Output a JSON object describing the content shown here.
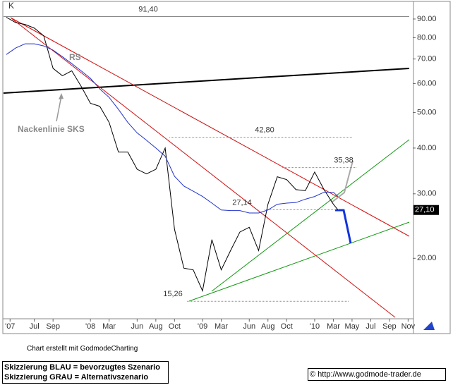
{
  "chart_data": {
    "type": "line",
    "log_scale": true,
    "grid": true,
    "x": [
      3,
      4,
      5,
      6,
      7,
      8,
      9,
      10,
      11,
      12,
      13,
      14,
      15,
      16,
      17,
      18,
      19,
      20,
      21,
      22,
      23,
      24,
      25,
      26,
      27,
      28,
      29,
      30,
      31,
      32,
      33,
      34,
      35,
      36,
      37,
      38,
      38.5
    ],
    "series": [
      {
        "color": "#000000",
        "values": [
          91,
          88,
          87,
          85,
          81,
          66,
          63,
          65,
          59,
          53,
          52,
          47,
          39,
          39,
          35,
          34,
          35,
          40,
          24,
          18.8,
          18.6,
          16.3,
          22.5,
          18.6,
          21,
          23.6,
          24.3,
          21,
          28.1,
          33.4,
          32.8,
          30.8,
          30.6,
          34.4,
          30.8,
          28.1,
          27.1
        ]
      },
      {
        "color": "#2233cc",
        "values": [
          72,
          75,
          77,
          77,
          76,
          74,
          71,
          68,
          65,
          62,
          58,
          55,
          51,
          47,
          44,
          42,
          40,
          38,
          33.5,
          31.5,
          30.5,
          29.5,
          28.3,
          27.1,
          27,
          27,
          26.6,
          26.6,
          27.1,
          28.1,
          28.3,
          28.4,
          29,
          29.5,
          30.3,
          30.3,
          29.5
        ]
      }
    ],
    "xlim": [
      2.7,
      46.5
    ],
    "xticks": [
      {
        "value": 3.4,
        "label": "'07"
      },
      {
        "value": 6,
        "label": "Jul"
      },
      {
        "value": 8,
        "label": "Sep"
      },
      {
        "value": 12,
        "label": "'08"
      },
      {
        "value": 14,
        "label": "Mar"
      },
      {
        "value": 17,
        "label": "Jun"
      },
      {
        "value": 19,
        "label": "Aug"
      },
      {
        "value": 21,
        "label": "Oct"
      },
      {
        "value": 24,
        "label": "'09"
      },
      {
        "value": 26,
        "label": "Mar"
      },
      {
        "value": 29,
        "label": "Jun"
      },
      {
        "value": 31,
        "label": "Aug"
      },
      {
        "value": 33,
        "label": "Oct"
      },
      {
        "value": 36,
        "label": "'10"
      },
      {
        "value": 38,
        "label": "Mar"
      },
      {
        "value": 40,
        "label": "May"
      },
      {
        "value": 42,
        "label": "Jul"
      },
      {
        "value": 44,
        "label": "Sep"
      },
      {
        "value": 46,
        "label": "Nov"
      }
    ],
    "ylim": [
      13.8,
      99.2
    ],
    "yticks": [
      {
        "value": 20,
        "label": "20.00"
      },
      {
        "value": 30,
        "label": "30.00"
      },
      {
        "value": 40,
        "label": "40.00"
      },
      {
        "value": 50,
        "label": "50.00"
      },
      {
        "value": 60,
        "label": "60.00"
      },
      {
        "value": 70,
        "label": "70.00"
      },
      {
        "value": 80,
        "label": "80.00"
      },
      {
        "value": 90,
        "label": "90.00"
      }
    ],
    "levels": [
      {
        "value": 91.4,
        "label": "91,40"
      },
      {
        "value": 42.8,
        "label": "42,80"
      },
      {
        "value": 35.38,
        "label": "35,38"
      },
      {
        "value": 27.14,
        "label": "27,14"
      },
      {
        "value": 15.26,
        "label": "15,26"
      }
    ],
    "last": {
      "value": 27.1,
      "label": "27,10"
    },
    "annotations": [
      "K",
      "RS",
      "Nackenlinie SKS"
    ]
  },
  "footer": {
    "credit": "Chart erstellt mit GodmodeCharting",
    "legend": [
      "Skizzierung BLAU = bevorzugtes Szenario",
      "Skizzierung GRAU = Alternativszenario"
    ],
    "url": "© http://www.godmode-trader.de"
  }
}
